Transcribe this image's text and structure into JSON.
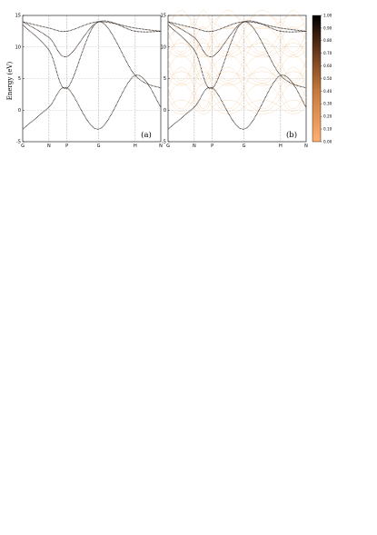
{
  "chart_data": [
    {
      "panel_label": "(a)",
      "type": "line",
      "style": "dotted",
      "ylabel": "Energy (eV)",
      "ylim": [
        -5,
        15
      ],
      "yticks": [
        "-5",
        "0",
        "5",
        "10",
        "15"
      ],
      "xticks": [
        "G",
        "N",
        "P",
        "G",
        "H",
        "N"
      ],
      "grid": "dashed lines at high-symmetry points and at 5 eV",
      "series_color": "#1a0e08",
      "bands": [
        {
          "x": [
            0,
            1,
            2,
            3,
            4,
            5
          ],
          "y": [
            -3.0,
            0.5,
            3.5,
            -3.0,
            5.5,
            0.5
          ]
        },
        {
          "x": [
            0,
            1,
            2,
            3,
            4,
            5
          ],
          "y": [
            13.5,
            9.5,
            3.5,
            14.0,
            5.5,
            3.5
          ]
        },
        {
          "x": [
            0,
            1,
            2,
            3,
            4,
            5
          ],
          "y": [
            14.0,
            11.5,
            8.5,
            14.0,
            12.5,
            12.5
          ]
        },
        {
          "x": [
            0,
            1,
            2,
            3,
            4,
            5
          ],
          "y": [
            14.0,
            13.0,
            12.5,
            14.0,
            13.0,
            12.5
          ]
        }
      ]
    },
    {
      "panel_label": "(b)",
      "type": "line",
      "style": "dotted",
      "ylim": [
        -5,
        15
      ],
      "yticks": [
        "-5",
        "0",
        "5",
        "10",
        "15"
      ],
      "xticks": [
        "G",
        "N",
        "P",
        "G",
        "H",
        "N"
      ],
      "grid": "dashed lines at high-symmetry points and at 5 eV",
      "series_color": "#1a0e08",
      "background_bands_color": "#f2b06b",
      "bands": [
        {
          "x": [
            0,
            1,
            2,
            3,
            4,
            5
          ],
          "y": [
            -3.0,
            0.5,
            3.5,
            -3.0,
            5.5,
            0.5
          ]
        },
        {
          "x": [
            0,
            1,
            2,
            3,
            4,
            5
          ],
          "y": [
            13.5,
            9.5,
            3.5,
            14.0,
            5.5,
            3.5
          ]
        },
        {
          "x": [
            0,
            1,
            2,
            3,
            4,
            5
          ],
          "y": [
            14.0,
            11.5,
            8.5,
            14.0,
            12.5,
            12.5
          ]
        },
        {
          "x": [
            0,
            1,
            2,
            3,
            4,
            5
          ],
          "y": [
            14.0,
            13.0,
            12.5,
            14.0,
            13.0,
            12.5
          ]
        }
      ],
      "colorbar": {
        "ticks": [
          "0.00",
          "0.10",
          "0.20",
          "0.30",
          "0.40",
          "0.50",
          "0.60",
          "0.70",
          "0.80",
          "0.90",
          "1.00"
        ],
        "range": [
          0,
          1
        ],
        "colors": [
          "#ffb070",
          "#c77a3c",
          "#5c3018",
          "#000000"
        ]
      }
    }
  ]
}
